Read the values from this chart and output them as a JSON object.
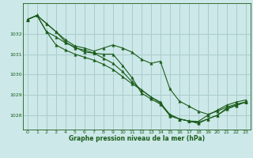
{
  "title": "Graphe pression niveau de la mer (hPa)",
  "background_color": "#cce8e8",
  "grid_color": "#aacccc",
  "line_color": "#1a5c1a",
  "xlim": [
    -0.5,
    23.5
  ],
  "ylim": [
    1027.3,
    1033.5
  ],
  "yticks": [
    1028,
    1029,
    1030,
    1031,
    1032
  ],
  "xticks": [
    0,
    1,
    2,
    3,
    4,
    5,
    6,
    7,
    8,
    9,
    10,
    11,
    12,
    13,
    14,
    15,
    16,
    17,
    18,
    19,
    20,
    21,
    22,
    23
  ],
  "series": [
    [
      1032.7,
      1032.9,
      1032.5,
      1032.1,
      1031.7,
      1031.4,
      1031.3,
      1031.15,
      1031.3,
      1031.45,
      1031.3,
      1031.1,
      1030.75,
      1030.55,
      1030.65,
      1029.3,
      1028.7,
      1028.45,
      1028.2,
      1028.05,
      1028.2,
      1028.4,
      1028.55,
      1028.65
    ],
    [
      1032.7,
      1032.9,
      1032.5,
      1032.1,
      1031.6,
      1031.3,
      1031.2,
      1031.05,
      1031.0,
      1031.0,
      1030.45,
      1029.85,
      1029.1,
      1028.8,
      1028.55,
      1028.0,
      1027.82,
      1027.72,
      1027.7,
      1028.0,
      1028.25,
      1028.5,
      1028.65,
      1028.75
    ],
    [
      1032.7,
      1032.9,
      1032.1,
      1031.85,
      1031.55,
      1031.35,
      1031.1,
      1031.05,
      1030.8,
      1030.55,
      1030.15,
      1029.65,
      1029.25,
      1028.9,
      1028.6,
      1028.05,
      1027.82,
      1027.72,
      1027.6,
      1027.82,
      1028.0,
      1028.35,
      1028.5,
      1028.65
    ],
    [
      1032.7,
      1032.9,
      1032.1,
      1031.45,
      1031.2,
      1031.0,
      1030.85,
      1030.7,
      1030.5,
      1030.25,
      1029.9,
      1029.55,
      1029.25,
      1028.9,
      1028.65,
      1027.97,
      1027.82,
      1027.72,
      1027.65,
      1027.82,
      1028.0,
      1028.3,
      1028.48,
      1028.65
    ]
  ]
}
